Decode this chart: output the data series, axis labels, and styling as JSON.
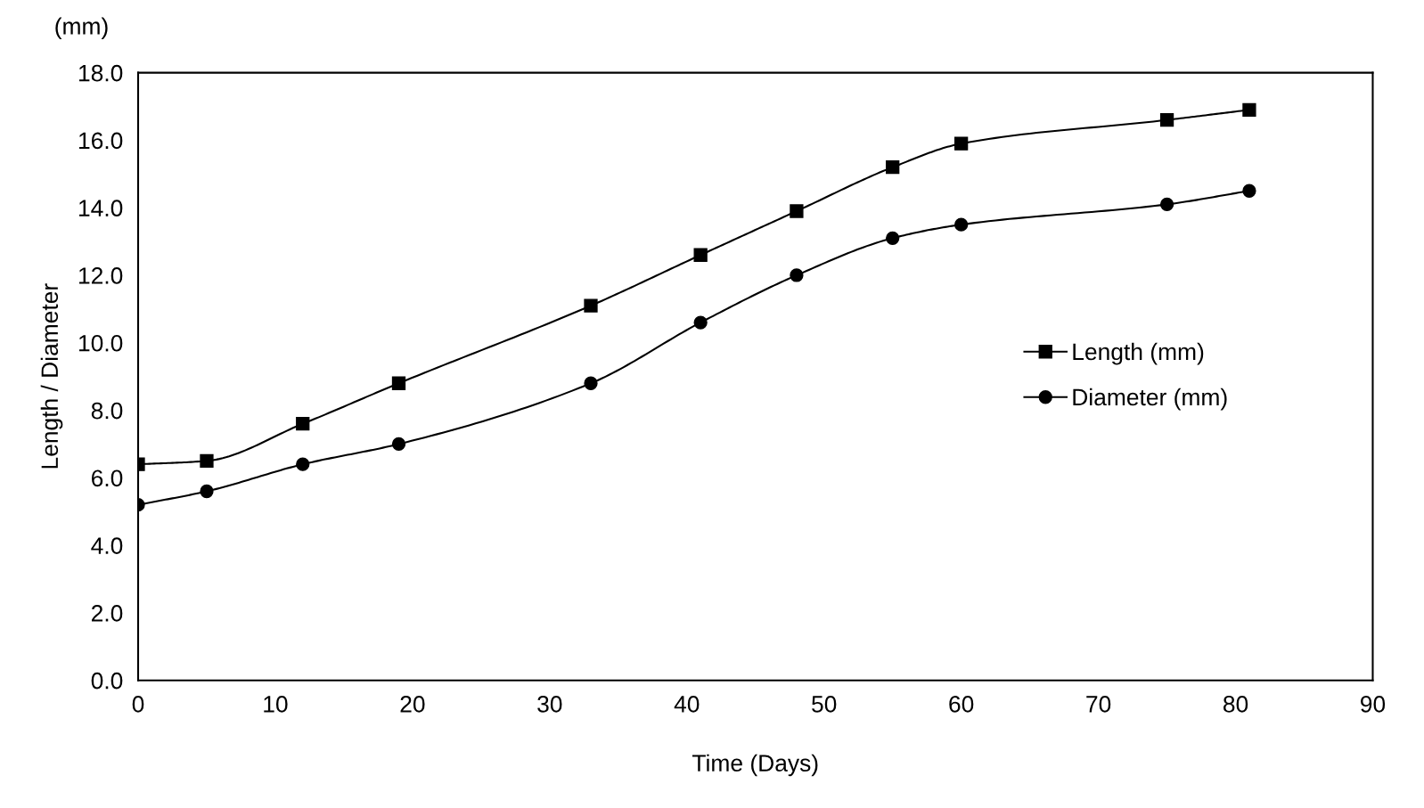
{
  "chart_data": {
    "type": "line",
    "xlabel": "Time (Days)",
    "ylabel": "Length / Diameter",
    "annotations": [
      "(mm)"
    ],
    "x": [
      0,
      5,
      12,
      19,
      33,
      41,
      48,
      55,
      60,
      75,
      81
    ],
    "series": [
      {
        "name": "Length (mm)",
        "color": "#000000",
        "marker": "square",
        "values": [
          6.4,
          6.5,
          7.6,
          8.8,
          11.1,
          12.6,
          13.9,
          15.2,
          15.9,
          16.6,
          16.9
        ]
      },
      {
        "name": "Diameter (mm)",
        "color": "#000000",
        "marker": "circle",
        "values": [
          5.2,
          5.6,
          6.4,
          7.0,
          8.8,
          10.6,
          12.0,
          13.1,
          13.5,
          14.1,
          14.5
        ]
      }
    ],
    "xlim": [
      0,
      90
    ],
    "xticks": [
      0,
      10,
      20,
      30,
      40,
      50,
      60,
      70,
      80,
      90
    ],
    "ylim": [
      0,
      18
    ],
    "yticks": [
      {
        "value": 0,
        "label": "0.0"
      },
      {
        "value": 2,
        "label": "2.0"
      },
      {
        "value": 4,
        "label": "4.0"
      },
      {
        "value": 6,
        "label": "6.0"
      },
      {
        "value": 8,
        "label": "8.0"
      },
      {
        "value": 10,
        "label": "10.0"
      },
      {
        "value": 12,
        "label": "12.0"
      },
      {
        "value": 14,
        "label": "14.0"
      },
      {
        "value": 16,
        "label": "16.0"
      },
      {
        "value": 18,
        "label": "18.0"
      }
    ],
    "grid": false,
    "legend": "center right",
    "line_style": "solid"
  }
}
